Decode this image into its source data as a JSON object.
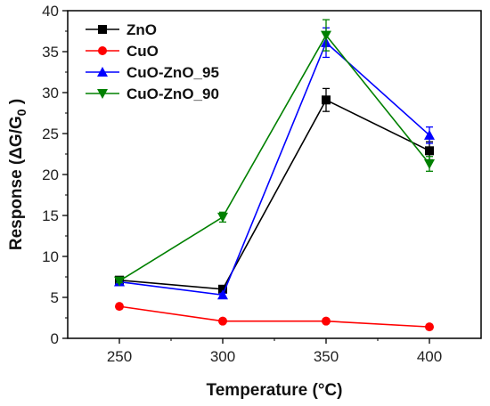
{
  "chart_data": {
    "type": "line",
    "xlabel": "Temperature (°C)",
    "ylabel_main": "Response (ΔG/G",
    "ylabel_sub": "0",
    "ylabel_end": " )",
    "xlim": [
      225,
      425
    ],
    "ylim": [
      0,
      40
    ],
    "xticks": [
      250,
      300,
      350,
      400
    ],
    "yticks": [
      0,
      5,
      10,
      15,
      20,
      25,
      30,
      35,
      40
    ],
    "grid": false,
    "legend_position": "top-left",
    "series": [
      {
        "name": "ZnO",
        "color": "#000000",
        "marker": "square",
        "x": [
          250,
          300,
          350,
          400
        ],
        "y": [
          7.1,
          6.0,
          29.1,
          22.9
        ],
        "err": [
          0.3,
          0.3,
          1.4,
          1.1
        ]
      },
      {
        "name": "CuO",
        "color": "#ff0000",
        "marker": "circle",
        "x": [
          250,
          300,
          350,
          400
        ],
        "y": [
          3.9,
          2.1,
          2.1,
          1.4
        ],
        "err": [
          0,
          0,
          0,
          0
        ]
      },
      {
        "name": "CuO-ZnO_95",
        "color": "#0000ff",
        "marker": "triangle-up",
        "x": [
          250,
          300,
          350,
          400
        ],
        "y": [
          6.9,
          5.3,
          36.1,
          24.8
        ],
        "err": [
          0.2,
          0.2,
          1.8,
          1.0
        ]
      },
      {
        "name": "CuO-ZnO_90",
        "color": "#008000",
        "marker": "triangle-down",
        "x": [
          250,
          300,
          350,
          400
        ],
        "y": [
          7.0,
          14.8,
          37.0,
          21.3
        ],
        "err": [
          0.2,
          0.6,
          1.9,
          0.9
        ]
      }
    ]
  }
}
